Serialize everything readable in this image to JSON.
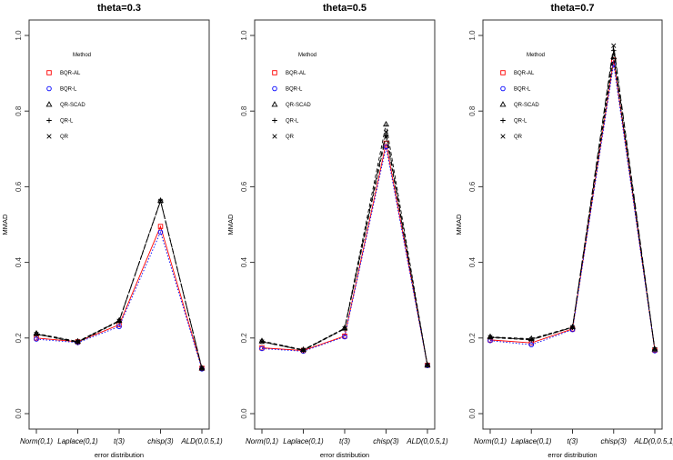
{
  "chart_data": [
    {
      "type": "line",
      "title": "theta=0.3",
      "xlabel": "error distribution",
      "ylabel": "MMAD",
      "categories": [
        "Norm(0,1)",
        "Laplace(0,1)",
        "t(3)",
        "chisp(3)",
        "ALD(0,0.5,1)"
      ],
      "ylim": [
        0,
        1.0
      ],
      "yticks": [
        "0.0",
        "0.2",
        "0.4",
        "0.6",
        "0.8",
        "1.0"
      ],
      "grid": false,
      "legend": {
        "title": "Method",
        "placement": "top-left"
      },
      "series": [
        {
          "name": "BQR-AL",
          "color": "#ff0000",
          "marker": "square",
          "line": "solid",
          "values": [
            0.2,
            0.19,
            0.235,
            0.495,
            0.12
          ]
        },
        {
          "name": "BQR-L",
          "color": "#0000ff",
          "marker": "circle",
          "line": "dotted",
          "values": [
            0.197,
            0.188,
            0.23,
            0.48,
            0.118
          ]
        },
        {
          "name": "QR-SCAD",
          "color": "#000000",
          "marker": "triangle",
          "line": "dashed",
          "values": [
            0.212,
            0.191,
            0.246,
            0.563,
            0.12
          ]
        },
        {
          "name": "QR-L",
          "color": "#000000",
          "marker": "plus",
          "line": "dashed",
          "values": [
            0.21,
            0.188,
            0.244,
            0.563,
            0.119
          ]
        },
        {
          "name": "QR",
          "color": "#000000",
          "marker": "cross",
          "line": "longdash",
          "values": [
            0.21,
            0.19,
            0.245,
            0.562,
            0.12
          ]
        }
      ]
    },
    {
      "type": "line",
      "title": "theta=0.5",
      "xlabel": "error distribution",
      "ylabel": "MMAD",
      "categories": [
        "Norm(0,1)",
        "Laplace(0,1)",
        "t(3)",
        "chisp(3)",
        "ALD(0,0.5,1)"
      ],
      "ylim": [
        0,
        1.0
      ],
      "yticks": [
        "0.0",
        "0.2",
        "0.4",
        "0.6",
        "0.8",
        "1.0"
      ],
      "grid": false,
      "legend": {
        "title": "Method",
        "placement": "top-left"
      },
      "series": [
        {
          "name": "BQR-AL",
          "color": "#ff0000",
          "marker": "square",
          "line": "solid",
          "values": [
            0.174,
            0.167,
            0.205,
            0.715,
            0.128
          ]
        },
        {
          "name": "BQR-L",
          "color": "#0000ff",
          "marker": "circle",
          "line": "dotted",
          "values": [
            0.172,
            0.165,
            0.203,
            0.705,
            0.127
          ]
        },
        {
          "name": "QR-SCAD",
          "color": "#000000",
          "marker": "triangle",
          "line": "dashed",
          "values": [
            0.192,
            0.169,
            0.226,
            0.765,
            0.128
          ]
        },
        {
          "name": "QR-L",
          "color": "#000000",
          "marker": "plus",
          "line": "dashed",
          "values": [
            0.19,
            0.167,
            0.224,
            0.735,
            0.128
          ]
        },
        {
          "name": "QR",
          "color": "#000000",
          "marker": "cross",
          "line": "longdash",
          "values": [
            0.19,
            0.168,
            0.225,
            0.745,
            0.128
          ]
        }
      ]
    },
    {
      "type": "line",
      "title": "theta=0.7",
      "xlabel": "error distribution",
      "ylabel": "MMAD",
      "categories": [
        "Norm(0,1)",
        "Laplace(0,1)",
        "t(3)",
        "chisp(3)",
        "ALD(0,0.5,1)"
      ],
      "ylim": [
        0,
        1.0
      ],
      "yticks": [
        "0.0",
        "0.2",
        "0.4",
        "0.6",
        "0.8",
        "1.0"
      ],
      "grid": false,
      "legend": {
        "title": "Method",
        "placement": "top-left"
      },
      "series": [
        {
          "name": "BQR-AL",
          "color": "#ff0000",
          "marker": "square",
          "line": "solid",
          "values": [
            0.195,
            0.187,
            0.224,
            0.935,
            0.168
          ]
        },
        {
          "name": "BQR-L",
          "color": "#0000ff",
          "marker": "circle",
          "line": "dotted",
          "values": [
            0.193,
            0.182,
            0.222,
            0.925,
            0.166
          ]
        },
        {
          "name": "QR-SCAD",
          "color": "#000000",
          "marker": "triangle",
          "line": "dashed",
          "values": [
            0.203,
            0.198,
            0.229,
            0.943,
            0.17
          ]
        },
        {
          "name": "QR-L",
          "color": "#000000",
          "marker": "plus",
          "line": "dashed",
          "values": [
            0.201,
            0.195,
            0.228,
            0.96,
            0.169
          ]
        },
        {
          "name": "QR",
          "color": "#000000",
          "marker": "cross",
          "line": "longdash",
          "values": [
            0.202,
            0.196,
            0.228,
            0.973,
            0.17
          ]
        }
      ]
    }
  ]
}
